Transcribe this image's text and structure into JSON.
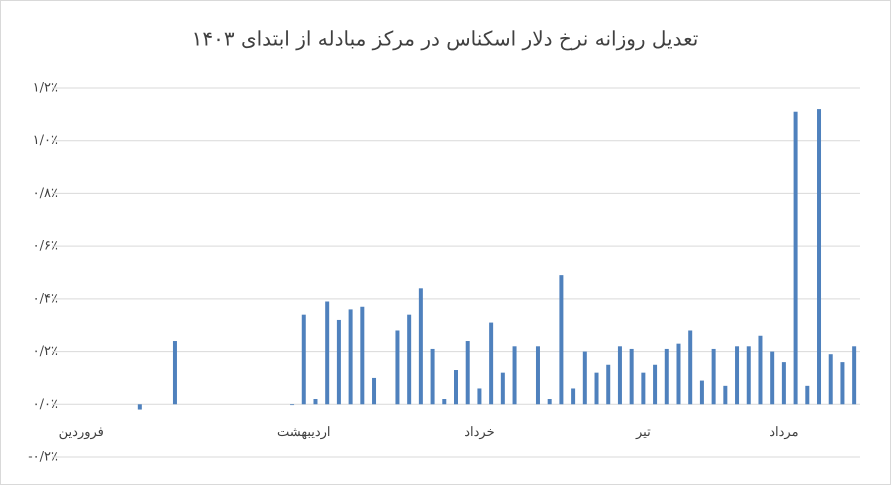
{
  "chart_data": {
    "type": "bar",
    "title": "تعدیل روزانه نرخ دلار اسکناس در مرکز مبادله از ابتدای ۱۴۰۳",
    "categories": [
      null,
      null,
      "فروردین",
      null,
      null,
      null,
      null,
      null,
      null,
      null,
      null,
      null,
      null,
      null,
      null,
      null,
      null,
      null,
      null,
      null,
      null,
      "اردیبهشت",
      null,
      null,
      null,
      null,
      null,
      null,
      null,
      null,
      null,
      null,
      null,
      null,
      null,
      null,
      "خرداد",
      null,
      null,
      null,
      null,
      null,
      null,
      null,
      null,
      null,
      null,
      null,
      null,
      null,
      "تیر",
      null,
      null,
      null,
      null,
      null,
      null,
      null,
      null,
      null,
      null,
      null,
      "مرداد",
      null,
      null,
      null,
      null,
      null,
      null
    ],
    "values": [
      null,
      null,
      null,
      null,
      null,
      null,
      null,
      -0.02,
      null,
      null,
      0.24,
      null,
      null,
      null,
      null,
      null,
      null,
      null,
      null,
      null,
      0,
      0.34,
      0.02,
      0.39,
      0.32,
      0.36,
      0.37,
      0.1,
      null,
      0.28,
      0.34,
      0.44,
      0.21,
      0.02,
      0.13,
      0.24,
      0.06,
      0.31,
      0.12,
      0.22,
      null,
      0.22,
      0.02,
      0.49,
      0.06,
      0.2,
      0.12,
      0.15,
      0.22,
      0.21,
      0.12,
      0.15,
      0.21,
      0.23,
      0.28,
      0.09,
      0.21,
      0.07,
      0.22,
      0.22,
      0.26,
      0.2,
      0.16,
      1.11,
      0.07,
      1.12,
      0.19,
      0.16,
      0.22
    ],
    "color": "#4f81bd",
    "ylim": [
      -0.2,
      1.2
    ],
    "yticks": [
      {
        "value": -0.2,
        "label": "-۰/۲٪"
      },
      {
        "value": 0,
        "label": "۰/۰٪"
      },
      {
        "value": 0.2,
        "label": "۰/۲٪"
      },
      {
        "value": 0.4,
        "label": "۰/۴٪"
      },
      {
        "value": 0.6,
        "label": "۰/۶٪"
      },
      {
        "value": 0.8,
        "label": "۰/۸٪"
      },
      {
        "value": 1.0,
        "label": "۱/۰٪"
      },
      {
        "value": 1.2,
        "label": "۱/۲٪"
      }
    ],
    "grid": true
  }
}
